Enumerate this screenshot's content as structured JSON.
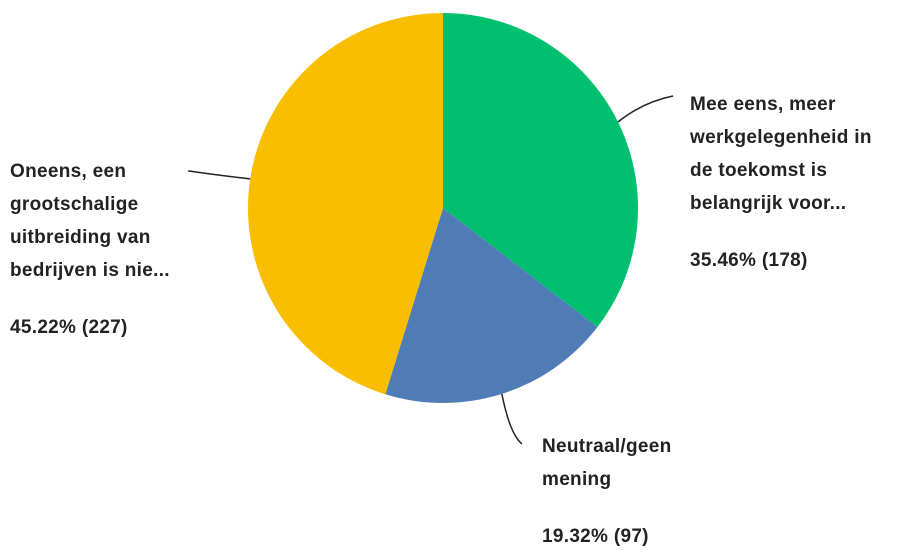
{
  "chart_data": {
    "type": "pie",
    "title": "",
    "start_angle_deg": 0,
    "direction": "clockwise",
    "slices": [
      {
        "label": "Mee eens, meer\nwerkgelegenheid in\nde toekomst is\nbelangrijk voor...",
        "percent": 35.46,
        "count": 178,
        "value_text": "35.46% (178)",
        "color": "#00BF6F"
      },
      {
        "label": "Neutraal/geen\nmening",
        "percent": 19.32,
        "count": 97,
        "value_text": "19.32% (97)",
        "color": "#507CB6"
      },
      {
        "label": "Oneens, een\ngrootschalige\nuitbreiding van\nbedrijven is nie...",
        "percent": 45.22,
        "count": 227,
        "value_text": "45.22% (227)",
        "color": "#F9BE00"
      }
    ]
  }
}
